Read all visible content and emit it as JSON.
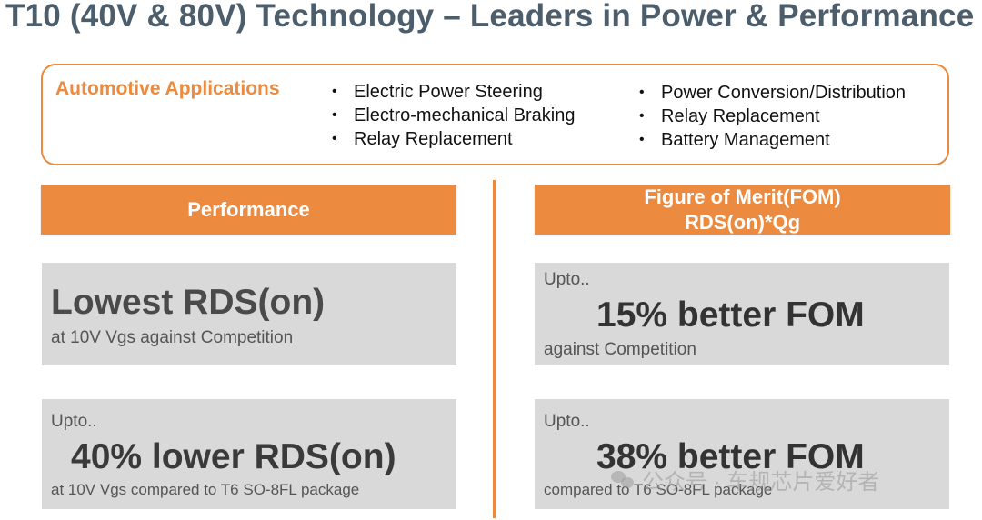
{
  "title": "T10 (40V & 80V) Technology – Leaders in Power & Performance",
  "applications": {
    "heading": "Automotive Applications",
    "column1": [
      "Electric Power Steering",
      "Electro-mechanical Braking",
      "Relay Replacement"
    ],
    "column2": [
      "Power Conversion/Distribution",
      "Relay Replacement",
      "Battery Management"
    ]
  },
  "performance": {
    "header": "Performance",
    "card1": {
      "headline": "Lowest RDS(on)",
      "subtext": "at 10V Vgs against Competition"
    },
    "card2": {
      "prefix": "Upto..",
      "headline": "40% lower RDS(on)",
      "subtext": "at 10V Vgs compared to T6 SO-8FL package"
    }
  },
  "fom": {
    "header_line1": "Figure of Merit(FOM)",
    "header_line2": "RDS(on)*Qg",
    "card1": {
      "prefix": "Upto..",
      "headline": "15% better FOM",
      "subtext": "against Competition"
    },
    "card2": {
      "prefix": "Upto..",
      "headline": "38% better FOM",
      "subtext": "compared to T6 SO-8FL package"
    }
  },
  "watermark": {
    "text": "公众号 · 车规芯片爱好者",
    "icon": "wechat-icon"
  },
  "colors": {
    "accent": "#ec8a3f",
    "title": "#4c5d6b",
    "card_bg": "#d9d9d9"
  }
}
